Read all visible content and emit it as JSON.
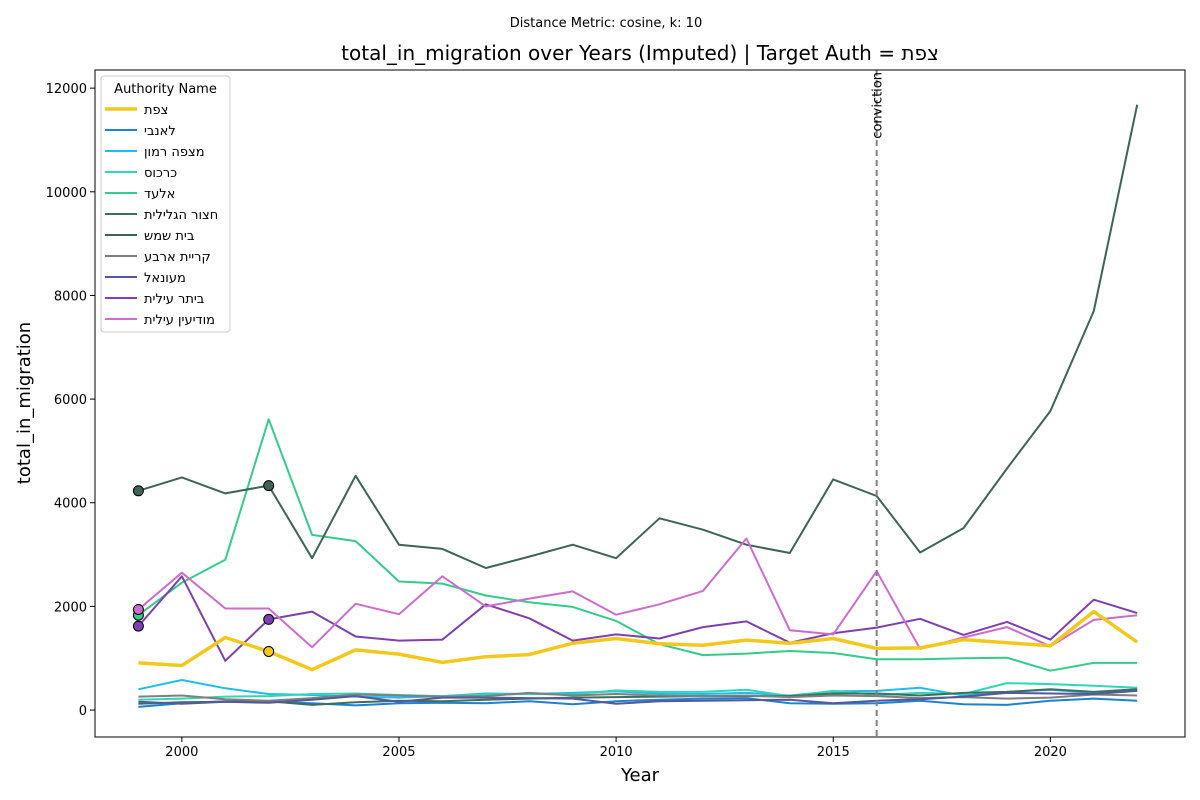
{
  "chart_data": {
    "type": "line",
    "suptitle": "Distance Metric: cosine, k: 10",
    "title": "total_in_migration over Years (Imputed) | Target Auth = צפת",
    "xlabel": "Year",
    "ylabel": "total_in_migration",
    "xlim": [
      1998.0,
      2023.1
    ],
    "ylim": [
      -520,
      12350
    ],
    "x_ticks": [
      2000,
      2005,
      2010,
      2015,
      2020
    ],
    "y_ticks": [
      0,
      2000,
      4000,
      6000,
      8000,
      10000,
      12000
    ],
    "grid": false,
    "legend": {
      "title": "Authority Name",
      "placement": "top-left"
    },
    "vline": {
      "x": 2016,
      "label": "conviction",
      "color": "#808080"
    },
    "x": [
      1999,
      2000,
      2001,
      2002,
      2003,
      2004,
      2005,
      2006,
      2007,
      2008,
      2009,
      2010,
      2011,
      2012,
      2013,
      2014,
      2015,
      2016,
      2017,
      2018,
      2019,
      2020,
      2021,
      2022
    ],
    "series": [
      {
        "name": "צפת",
        "color": "#f2c81c",
        "width": 3.5,
        "target": true,
        "values": [
          910,
          860,
          1400,
          1130,
          780,
          1160,
          1080,
          920,
          1030,
          1070,
          1290,
          1380,
          1280,
          1250,
          1350,
          1290,
          1380,
          1190,
          1200,
          1360,
          1300,
          1240,
          1900,
          1310
        ],
        "markers": [
          3
        ]
      },
      {
        "name": "לאנבי",
        "color": "#1f82cf",
        "width": 2,
        "values": [
          60,
          130,
          170,
          160,
          130,
          90,
          130,
          140,
          130,
          170,
          110,
          170,
          200,
          220,
          230,
          130,
          120,
          130,
          180,
          110,
          100,
          180,
          220,
          180
        ],
        "markers": []
      },
      {
        "name": "מצפה רמון",
        "color": "#1fbcee",
        "width": 2,
        "values": [
          400,
          580,
          420,
          310,
          290,
          260,
          240,
          270,
          320,
          310,
          330,
          360,
          320,
          310,
          330,
          280,
          360,
          370,
          430,
          280,
          350,
          390,
          330,
          390
        ],
        "markers": []
      },
      {
        "name": "כרכוס",
        "color": "#2fd6b7",
        "width": 2,
        "values": [
          200,
          220,
          260,
          270,
          310,
          320,
          290,
          270,
          300,
          310,
          300,
          380,
          350,
          350,
          390,
          270,
          370,
          290,
          330,
          310,
          520,
          500,
          470,
          430
        ],
        "markers": []
      },
      {
        "name": "אלעד",
        "color": "#33cc8a",
        "width": 2,
        "values": [
          1830,
          2460,
          2900,
          5610,
          3380,
          3260,
          2480,
          2440,
          2210,
          2080,
          1990,
          1720,
          1270,
          1060,
          1090,
          1140,
          1100,
          980,
          980,
          1000,
          1010,
          760,
          910,
          910
        ],
        "markers": [
          0
        ]
      },
      {
        "name": "חצור הגלילית",
        "color": "#3b705e",
        "width": 2,
        "values": [
          120,
          150,
          160,
          170,
          100,
          150,
          180,
          170,
          200,
          220,
          240,
          250,
          260,
          270,
          270,
          270,
          320,
          320,
          280,
          330,
          350,
          400,
          350,
          400
        ],
        "markers": []
      },
      {
        "name": "בית שמש",
        "color": "#3e6357",
        "width": 2,
        "values": [
          4230,
          4490,
          4180,
          4330,
          2930,
          4520,
          3190,
          3110,
          2740,
          2960,
          3190,
          2930,
          3700,
          3480,
          3190,
          3030,
          4450,
          4130,
          3040,
          3510,
          4660,
          5770,
          7700,
          11680
        ],
        "markers": [
          0,
          3
        ]
      },
      {
        "name": "קריית ארבע",
        "color": "#7f7f7f",
        "width": 2,
        "values": [
          260,
          280,
          210,
          180,
          230,
          300,
          280,
          260,
          270,
          330,
          280,
          310,
          280,
          270,
          280,
          250,
          280,
          270,
          230,
          250,
          220,
          240,
          300,
          280
        ],
        "markers": []
      },
      {
        "name": "מעונאל",
        "color": "#55589c",
        "width": 2,
        "values": [
          160,
          120,
          160,
          140,
          200,
          270,
          160,
          240,
          240,
          230,
          220,
          120,
          170,
          180,
          190,
          200,
          130,
          180,
          210,
          260,
          330,
          320,
          310,
          370
        ],
        "markers": []
      },
      {
        "name": "ביתר עילית",
        "color": "#7f3fb0",
        "width": 2,
        "values": [
          1620,
          2580,
          950,
          1750,
          1900,
          1420,
          1340,
          1360,
          2040,
          1770,
          1340,
          1460,
          1380,
          1600,
          1710,
          1300,
          1480,
          1590,
          1760,
          1450,
          1700,
          1360,
          2130,
          1870
        ],
        "markers": [
          0,
          3
        ]
      },
      {
        "name": "מודיעין עילית",
        "color": "#cd6cce",
        "width": 2,
        "values": [
          1940,
          2650,
          1960,
          1960,
          1210,
          2050,
          1850,
          2580,
          2000,
          2150,
          2290,
          1840,
          2040,
          2300,
          3310,
          1540,
          1460,
          2680,
          1180,
          1400,
          1600,
          1230,
          1740,
          1830
        ],
        "markers": [
          0
        ]
      }
    ]
  }
}
